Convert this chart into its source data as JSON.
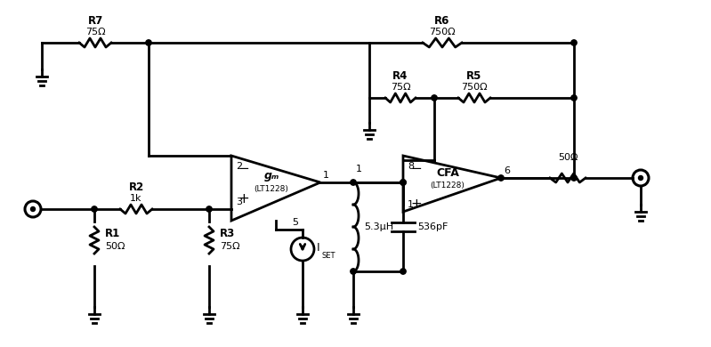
{
  "background": "#ffffff",
  "line_color": "#000000",
  "line_width": 2.0,
  "fig_width": 7.99,
  "fig_height": 3.9,
  "dpi": 100,
  "components": {
    "R7": {
      "label": "R7",
      "value": "75Ω"
    },
    "R6": {
      "label": "R6",
      "value": "750Ω"
    },
    "R4": {
      "label": "R4",
      "value": "75Ω"
    },
    "R5": {
      "label": "R5",
      "value": "750Ω"
    },
    "R2": {
      "label": "R2",
      "value": "1k"
    },
    "R1": {
      "label": "R1",
      "value": "50Ω"
    },
    "R3": {
      "label": "R3",
      "value": "75Ω"
    },
    "Rout": {
      "value": "50Ω"
    },
    "L": {
      "value": "5.3μH"
    },
    "C": {
      "value": "536pF"
    },
    "gm": {
      "label": "gₘ",
      "sublabel": "(LT1228)"
    },
    "cfa": {
      "label": "CFA",
      "sublabel": "(LT1228)"
    },
    "iset": {
      "label": "I",
      "sub": "SET"
    }
  }
}
